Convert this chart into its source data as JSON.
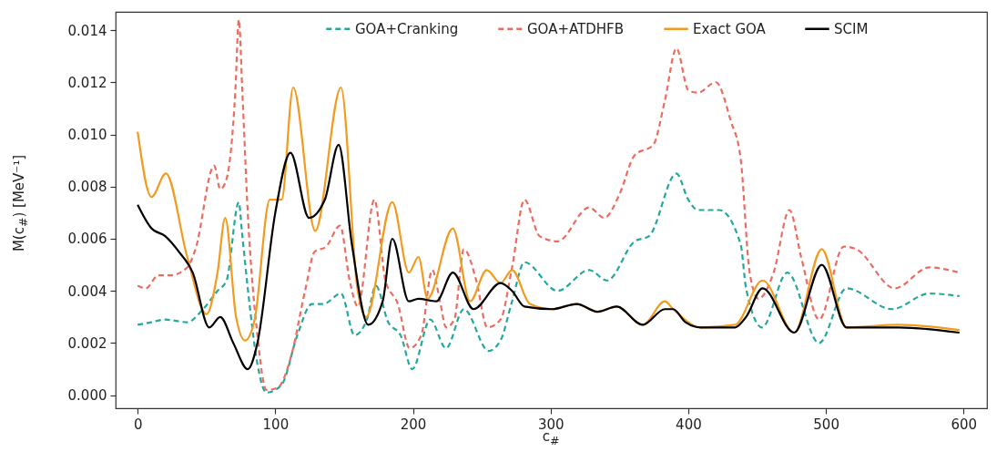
{
  "chart_data": {
    "type": "line",
    "xlabel": "c$_{#}$",
    "ylabel": "M(c$_{#}$) [MeV⁻¹]",
    "xlim": [
      -16,
      617
    ],
    "ylim": [
      -0.0005,
      0.0147
    ],
    "xticks": [
      0,
      100,
      200,
      300,
      400,
      500,
      600
    ],
    "yticks": [
      {
        "value": 0,
        "label": "0.000"
      },
      {
        "value": 0.002,
        "label": "0.002"
      },
      {
        "value": 0.004,
        "label": "0.004"
      },
      {
        "value": 0.006,
        "label": "0.006"
      },
      {
        "value": 0.008,
        "label": "0.008"
      },
      {
        "value": 0.01,
        "label": "0.010"
      },
      {
        "value": 0.012,
        "label": "0.012"
      },
      {
        "value": 0.014,
        "label": "0.014"
      }
    ],
    "grid": false,
    "legend": "top",
    "series": [
      {
        "name": "GOA+Cranking",
        "color": "#25a89c",
        "line_style": "dashed",
        "x": [
          0,
          10,
          20,
          36,
          47.5,
          58,
          64.6,
          73.5,
          75.7,
          80,
          87,
          93.6,
          104.6,
          116,
          126.6,
          135,
          147.7,
          157.6,
          166.5,
          173,
          182,
          191,
          199.5,
          212.6,
          224,
          237,
          255,
          263.6,
          272,
          281,
          305,
          328,
          341,
          361,
          371.5,
          391.4,
          400,
          407,
          422.5,
          438,
          442,
          453.6,
          472,
          495,
          515,
          548,
          575,
          597
        ],
        "values": [
          0.0027,
          0.0028,
          0.0029,
          0.0028,
          0.0033,
          0.004,
          0.0044,
          0.0074,
          0.0063,
          0.0041,
          0.0012,
          0.0001,
          0.0004,
          0.0023,
          0.0035,
          0.0035,
          0.0039,
          0.0023,
          0.0029,
          0.0042,
          0.0028,
          0.0023,
          0.001,
          0.0029,
          0.0018,
          0.0033,
          0.0017,
          0.0021,
          0.0036,
          0.0051,
          0.004,
          0.0048,
          0.0044,
          0.0059,
          0.0061,
          0.0085,
          0.0075,
          0.0071,
          0.0071,
          0.0058,
          0.0041,
          0.0026,
          0.0047,
          0.002,
          0.0041,
          0.0033,
          0.0039,
          0.0038
        ]
      },
      {
        "name": "GOA+ATDHFB",
        "color": "#ee6b5f",
        "line_style": "dashed",
        "x": [
          0,
          6,
          15,
          24,
          36,
          42,
          55.6,
          60,
          64.6,
          71,
          73.5,
          76,
          80,
          87,
          93.6,
          102,
          111,
          122,
          128.5,
          137,
          147,
          154,
          160,
          172,
          180,
          189,
          197.6,
          206,
          214,
          220,
          224,
          230,
          237,
          246,
          254,
          263.6,
          272,
          281,
          292,
          305,
          328,
          339,
          350,
          361,
          374.6,
          383,
          391.4,
          400,
          407,
          420,
          431,
          438,
          444.6,
          451,
          462,
          473.5,
          482,
          495,
          513,
          522,
          550,
          575,
          597
        ],
        "values": [
          0.0042,
          0.0041,
          0.0046,
          0.0046,
          0.0049,
          0.0056,
          0.0088,
          0.0079,
          0.0083,
          0.0117,
          0.0144,
          0.0117,
          0.007,
          0.0023,
          0.0002,
          0.0003,
          0.0014,
          0.0041,
          0.0055,
          0.0057,
          0.0065,
          0.0044,
          0.0034,
          0.0075,
          0.0044,
          0.0035,
          0.0018,
          0.0023,
          0.0048,
          0.0035,
          0.0026,
          0.0029,
          0.0056,
          0.0044,
          0.0026,
          0.0029,
          0.0049,
          0.0075,
          0.0061,
          0.0059,
          0.0072,
          0.0068,
          0.0077,
          0.0092,
          0.0096,
          0.0113,
          0.0133,
          0.0117,
          0.0116,
          0.012,
          0.0105,
          0.0091,
          0.0047,
          0.0037,
          0.0047,
          0.0071,
          0.0053,
          0.0029,
          0.0057,
          0.0056,
          0.0041,
          0.0049,
          0.0047
        ]
      },
      {
        "name": "Exact GOA",
        "color": "#f39a1f",
        "line_style": "solid",
        "x": [
          0,
          10,
          20.5,
          36,
          50,
          58,
          63.6,
          71.5,
          78,
          85,
          96,
          104.6,
          113,
          129,
          147.7,
          159.6,
          166,
          185,
          197,
          204,
          210.6,
          229,
          241.5,
          253.6,
          263.6,
          272,
          285,
          301,
          319,
          334,
          348,
          367,
          383,
          389,
          409,
          434,
          454,
          477,
          497,
          515,
          553,
          597
        ],
        "values": [
          0.0101,
          0.0076,
          0.0085,
          0.0053,
          0.0031,
          0.0047,
          0.0068,
          0.003,
          0.0021,
          0.0029,
          0.0075,
          0.0075,
          0.0118,
          0.0063,
          0.0118,
          0.0041,
          0.003,
          0.0074,
          0.0047,
          0.0053,
          0.0037,
          0.0064,
          0.0036,
          0.0048,
          0.0043,
          0.0048,
          0.0035,
          0.0033,
          0.0035,
          0.0032,
          0.0034,
          0.0027,
          0.0036,
          0.0033,
          0.0026,
          0.0027,
          0.0044,
          0.0024,
          0.0056,
          0.0026,
          0.0027,
          0.0025
        ]
      },
      {
        "name": "SCIM",
        "color": "#000000",
        "line_style": "solid",
        "x": [
          0,
          10,
          20,
          30,
          40,
          52,
          60,
          69.5,
          80,
          87,
          100,
          111,
          124.5,
          136,
          146,
          155.6,
          167.5,
          178,
          185,
          197,
          204,
          217,
          229,
          244,
          263.6,
          272,
          281,
          301,
          319,
          334,
          348,
          367,
          383,
          389,
          398,
          409,
          434,
          442,
          454,
          477,
          497,
          515,
          553,
          597
        ],
        "values": [
          0.0073,
          0.0064,
          0.0061,
          0.0055,
          0.0047,
          0.0026,
          0.003,
          0.002,
          0.001,
          0.002,
          0.007,
          0.0093,
          0.0068,
          0.0075,
          0.0096,
          0.0058,
          0.0027,
          0.0036,
          0.006,
          0.0036,
          0.0037,
          0.0036,
          0.0047,
          0.0033,
          0.0043,
          0.004,
          0.0034,
          0.0033,
          0.0035,
          0.0032,
          0.0034,
          0.0027,
          0.0033,
          0.0033,
          0.0028,
          0.0026,
          0.0026,
          0.003,
          0.0041,
          0.0024,
          0.005,
          0.0026,
          0.0026,
          0.0024
        ]
      }
    ]
  }
}
